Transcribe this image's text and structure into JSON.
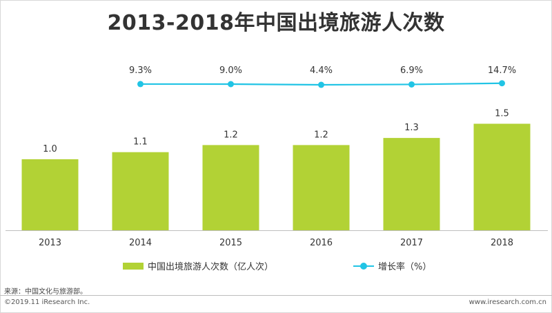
{
  "title": "2013-2018年中国出境旅游人次数",
  "colors": {
    "bar": "#b2d235",
    "line": "#21c4e5",
    "text": "#333333",
    "axis": "#bfbfbf"
  },
  "legend": {
    "bar_label": "中国出境旅游人次数（亿人次）",
    "line_label": "增长率（%）"
  },
  "chart_data": {
    "type": "bar",
    "categories": [
      "2013",
      "2014",
      "2015",
      "2016",
      "2017",
      "2018"
    ],
    "series": [
      {
        "name": "中国出境旅游人次数（亿人次）",
        "type": "bar",
        "values": [
          1.0,
          1.1,
          1.2,
          1.2,
          1.3,
          1.5
        ],
        "labels": [
          "1.0",
          "1.1",
          "1.2",
          "1.2",
          "1.3",
          "1.5"
        ]
      },
      {
        "name": "增长率（%）",
        "type": "line",
        "x": [
          "2014",
          "2015",
          "2016",
          "2017",
          "2018"
        ],
        "values": [
          9.3,
          9.0,
          4.4,
          6.9,
          14.7
        ],
        "labels": [
          "9.3%",
          "9.0%",
          "4.4%",
          "6.9%",
          "14.7%"
        ]
      }
    ]
  },
  "source": "来源：中国文化与旅游部。",
  "footer": {
    "copyright": "©2019.11 iResearch Inc.",
    "website": "www.iresearch.com.cn"
  }
}
